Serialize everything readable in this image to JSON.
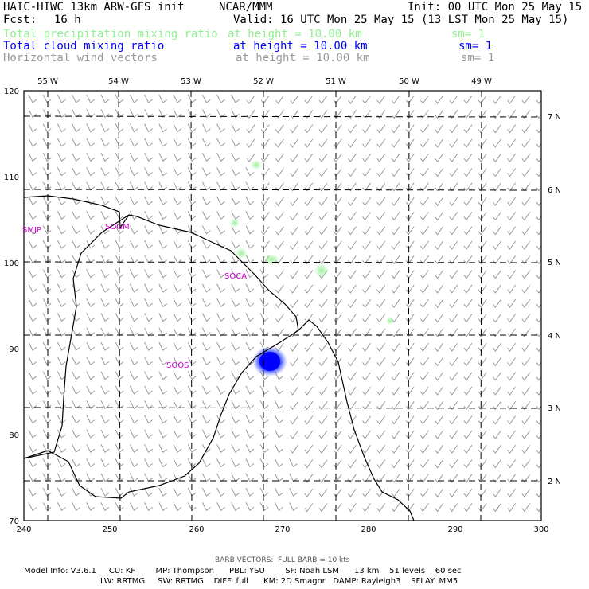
{
  "header": {
    "model_title": "HAIC-HIWC 13km ARW-GFS init",
    "institution": "NCAR/MMM",
    "init": "Init: 00 UTC Mon 25 May 15",
    "fcst_label": "Fcst:",
    "fcst_value": "16 h",
    "valid": "Valid: 16 UTC Mon 25 May 15 (13 LST Mon 25 May 15)",
    "fields": [
      {
        "name": "Total precipitation mixing ratio",
        "level": "at height = 10.00 km",
        "smooth": "sm= 1",
        "color": "#90ee90"
      },
      {
        "name": "Total cloud mixing ratio",
        "level": "at height = 10.00 km",
        "smooth": "sm= 1",
        "color": "#0000ff"
      },
      {
        "name": "Horizontal wind vectors",
        "level": "at height = 10.00 km",
        "smooth": "sm= 1",
        "color": "#999999"
      }
    ]
  },
  "map": {
    "x_ticks": [
      "240",
      "250",
      "260",
      "270",
      "280",
      "290",
      "300"
    ],
    "y_ticks": [
      "70",
      "80",
      "90",
      "100",
      "110",
      "120"
    ],
    "lon_labels": [
      "55 W",
      "54 W",
      "53 W",
      "52 W",
      "51 W",
      "50 W",
      "49 W"
    ],
    "lat_labels": [
      "2 N",
      "3 N",
      "4 N",
      "5 N",
      "6 N",
      "7 N"
    ],
    "stations": [
      "SMJP",
      "SOGM",
      "SOCA",
      "SOOS"
    ],
    "station_color": "#cc00cc",
    "barb_color": "#999999",
    "cloud_color": "#0000ff",
    "precip_color": "#90ee90",
    "x_range": [
      240,
      300
    ],
    "y_range": [
      70,
      120
    ]
  },
  "footer": {
    "barb_note": "BARB VECTORS:  FULL BARB = 10 kts",
    "line1": "Model Info: V3.6.1     CU: KF        MP: Thompson      PBL: YSU        SF: Noah LSM      13 km    51 levels    60 sec",
    "line2": "LW: RRTMG     SW: RRTMG    DIFF: full      KM: 2D Smagor   DAMP: Rayleigh3    SFLAY: MM5"
  }
}
